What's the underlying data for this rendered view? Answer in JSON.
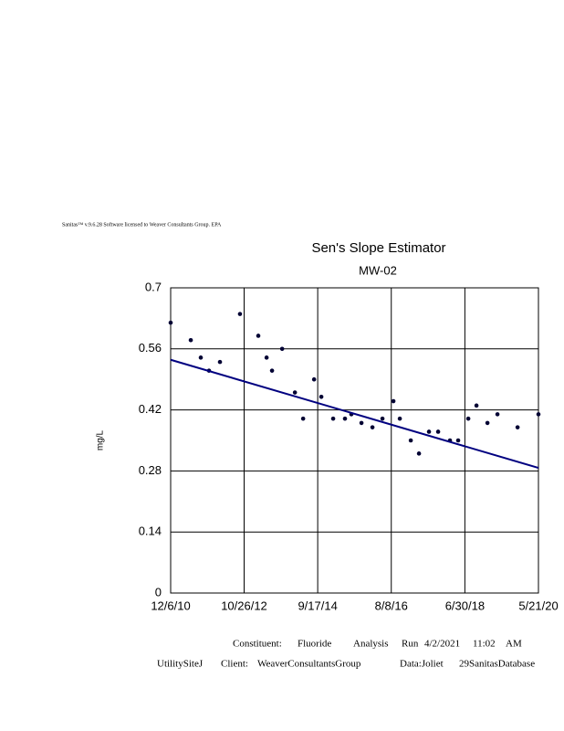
{
  "header": "Sanitas™ v.9.6.28 Software licensed to Weaver Consultants Group. EPA",
  "chart_data": {
    "type": "scatter",
    "title": "Sen's Slope Estimator",
    "subtitle": "MW-02",
    "y_label": "mg/L",
    "x": [
      "2010-12-06",
      "2011-06-13",
      "2011-09-15",
      "2011-12-01",
      "2012-03-13",
      "2012-09-17",
      "2013-03-08",
      "2013-05-25",
      "2013-07-15",
      "2013-10-18",
      "2014-02-15",
      "2014-05-03",
      "2014-08-14",
      "2014-10-21",
      "2015-02-09",
      "2015-05-31",
      "2015-07-30",
      "2015-11-02",
      "2016-02-13",
      "2016-05-17",
      "2016-08-28",
      "2016-10-27",
      "2017-02-07",
      "2017-04-25",
      "2017-07-28",
      "2017-10-22",
      "2018-02-10",
      "2018-04-28",
      "2018-08-01",
      "2018-10-17",
      "2019-01-28",
      "2019-05-02",
      "2019-11-07",
      "2020-05-21"
    ],
    "values": [
      0.62,
      0.58,
      0.54,
      0.51,
      0.53,
      0.64,
      0.59,
      0.54,
      0.51,
      0.56,
      0.46,
      0.4,
      0.49,
      0.45,
      0.4,
      0.4,
      0.41,
      0.39,
      0.38,
      0.4,
      0.44,
      0.4,
      0.35,
      0.32,
      0.37,
      0.37,
      0.35,
      0.35,
      0.4,
      0.43,
      0.39,
      0.41,
      0.38,
      0.41
    ],
    "color": "#000033",
    "trend": {
      "x": [
        "2010-12-06",
        "2020-05-21"
      ],
      "values": [
        0.535,
        0.287
      ],
      "color": "#000080"
    },
    "xlim": [
      "2010-12-06",
      "2020-05-21"
    ],
    "xticks": [
      {
        "value": "2010-12-06",
        "label": "12/6/10"
      },
      {
        "value": "2012-10-26",
        "label": "10/26/12"
      },
      {
        "value": "2014-09-17",
        "label": "9/17/14"
      },
      {
        "value": "2016-08-08",
        "label": "8/8/16"
      },
      {
        "value": "2018-06-30",
        "label": "6/30/18"
      },
      {
        "value": "2020-05-21",
        "label": "5/21/20"
      }
    ],
    "ylim": [
      0,
      0.7
    ],
    "yticks": [
      0,
      0.14,
      0.28,
      0.42,
      0.56,
      0.7
    ],
    "grid": true
  },
  "footer": {
    "line1": [
      "Constituent:",
      "Fluoride",
      "Analysis",
      "Run",
      "4/2/2021",
      "11:02",
      "AM"
    ],
    "line2": [
      "UtilitySiteJ",
      "Client:",
      "WeaverConsultantsGroup",
      "Data:Joliet",
      "29SanitasDatabase"
    ]
  }
}
